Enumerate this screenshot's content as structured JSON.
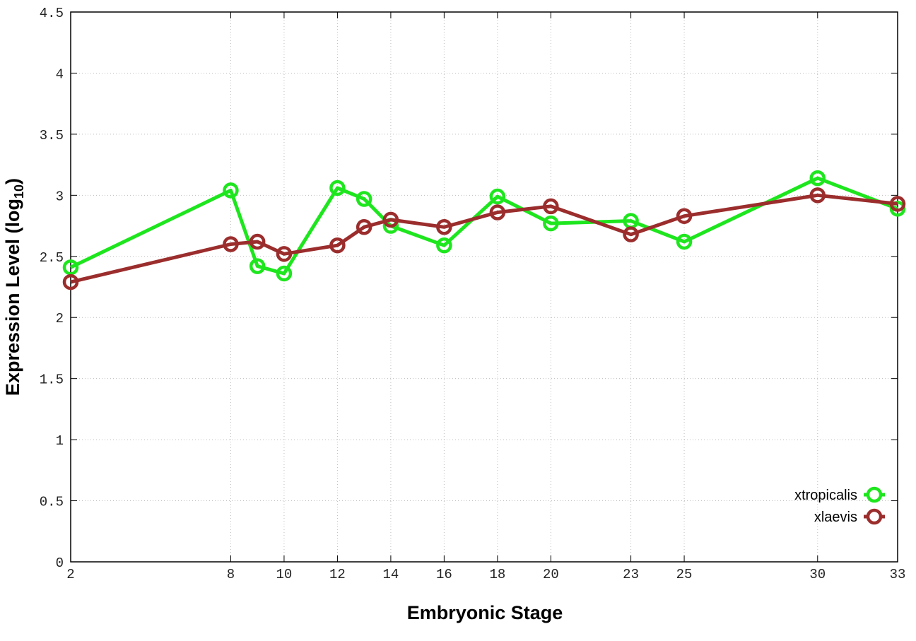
{
  "chart_data": {
    "type": "line",
    "xlabel": "Embryonic Stage",
    "ylabel_main": "Expression Level (log",
    "ylabel_sub": "10",
    "ylabel_close": ")",
    "xlim": [
      2,
      33
    ],
    "ylim": [
      0,
      4.5
    ],
    "x_ticks": [
      2,
      8,
      10,
      12,
      14,
      16,
      18,
      20,
      23,
      25,
      30,
      33
    ],
    "x_tick_labels": [
      "2",
      "8",
      "10",
      "12",
      "14",
      "16",
      "18",
      "20",
      "23",
      "25",
      "30",
      "33"
    ],
    "y_ticks": [
      0,
      0.5,
      1,
      1.5,
      2,
      2.5,
      3,
      3.5,
      4,
      4.5
    ],
    "y_tick_labels": [
      "0",
      "0.5",
      "1",
      "1.5",
      "2",
      "2.5",
      "3",
      "3.5",
      "4",
      "4.5"
    ],
    "grid": true,
    "legend_position": "bottom-right",
    "x": [
      2,
      8,
      9,
      10,
      12,
      13,
      14,
      16,
      18,
      20,
      23,
      25,
      30,
      33
    ],
    "series": [
      {
        "name": "xtropicalis",
        "color": "#1ee61e",
        "values": [
          2.41,
          3.04,
          2.42,
          2.36,
          3.06,
          2.97,
          2.75,
          2.59,
          2.99,
          2.77,
          2.79,
          2.62,
          3.14,
          2.89
        ]
      },
      {
        "name": "xlaevis",
        "color": "#9b2d2d",
        "values": [
          2.29,
          2.6,
          2.62,
          2.52,
          2.59,
          2.74,
          2.8,
          2.74,
          2.86,
          2.91,
          2.68,
          2.83,
          3.0,
          2.93
        ]
      }
    ]
  }
}
